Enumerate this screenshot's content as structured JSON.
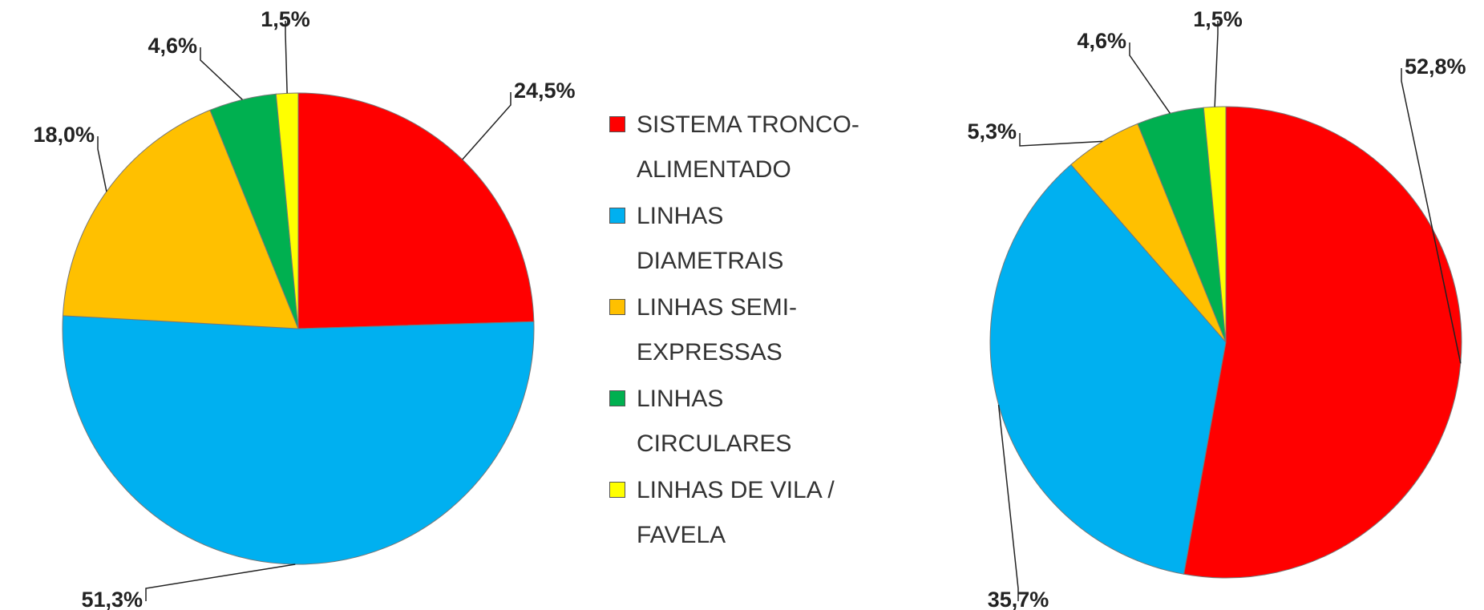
{
  "chart_data": [
    {
      "type": "pie",
      "categories": [
        "SISTEMA TRONCO-ALIMENTADO",
        "LINHAS DIAMETRAIS",
        "LINHAS SEMI-EXPRESSAS",
        "LINHAS CIRCULARES",
        "LINHAS DE VILA / FAVELA"
      ],
      "colors": [
        "#ff0000",
        "#00b0f0",
        "#ffc000",
        "#00b050",
        "#ffff00"
      ],
      "values": [
        24.5,
        51.3,
        18.0,
        4.6,
        1.5
      ],
      "value_labels": [
        "24,5%",
        "51,3%",
        "18,0%",
        "4,6%",
        "1,5%"
      ]
    },
    {
      "type": "pie",
      "values": [
        52.8,
        35.7,
        5.3,
        4.6,
        1.5
      ],
      "value_labels": [
        "52,8%",
        "35,7%",
        "5,3%",
        "4,6%",
        "1,5%"
      ]
    }
  ]
}
